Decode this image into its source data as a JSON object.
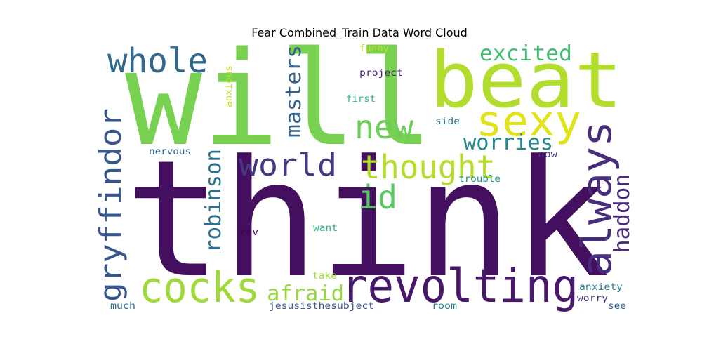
{
  "chart_data": {
    "type": "wordcloud",
    "title": "Fear Combined_Train Data Word Cloud",
    "palette": "viridis",
    "words": [
      {
        "text": "think",
        "color": "#440f5e"
      },
      {
        "text": "will",
        "color": "#78d151"
      },
      {
        "text": "beat",
        "color": "#b3dd2e"
      },
      {
        "text": "sexy",
        "color": "#dfe318"
      },
      {
        "text": "whole",
        "color": "#31688e"
      },
      {
        "text": "excited",
        "color": "#40bc72"
      },
      {
        "text": "masters",
        "color": "#33638d"
      },
      {
        "text": "new",
        "color": "#6dcd59"
      },
      {
        "text": "thought",
        "color": "#b5de2b"
      },
      {
        "text": "world",
        "color": "#453781"
      },
      {
        "text": "id",
        "color": "#5ac864"
      },
      {
        "text": "worries",
        "color": "#238a8d"
      },
      {
        "text": "always",
        "color": "#472d7b"
      },
      {
        "text": "gryffindor",
        "color": "#39568c"
      },
      {
        "text": "robinson",
        "color": "#2c728e"
      },
      {
        "text": "haddon",
        "color": "#482878"
      },
      {
        "text": "cocks",
        "color": "#a0da39"
      },
      {
        "text": "revolting",
        "color": "#48186a"
      },
      {
        "text": "afraid",
        "color": "#95d840"
      },
      {
        "text": "funny",
        "color": "#c2df23"
      },
      {
        "text": "project",
        "color": "#482475"
      },
      {
        "text": "anxious",
        "color": "#bddf26"
      },
      {
        "text": "first",
        "color": "#35b779"
      },
      {
        "text": "side",
        "color": "#2a788e"
      },
      {
        "text": "nervous",
        "color": "#31688e"
      },
      {
        "text": "now",
        "color": "#443983"
      },
      {
        "text": "trouble",
        "color": "#21918c"
      },
      {
        "text": "want",
        "color": "#2fb47c"
      },
      {
        "text": "rev",
        "color": "#440154"
      },
      {
        "text": "take",
        "color": "#a2da37"
      },
      {
        "text": "anxiety",
        "color": "#287c8e"
      },
      {
        "text": "worry",
        "color": "#46307e"
      },
      {
        "text": "much",
        "color": "#2d708e"
      },
      {
        "text": "jesusisthesubject",
        "color": "#3b528b"
      },
      {
        "text": "room",
        "color": "#26828e"
      },
      {
        "text": "see",
        "color": "#33638d"
      }
    ]
  }
}
